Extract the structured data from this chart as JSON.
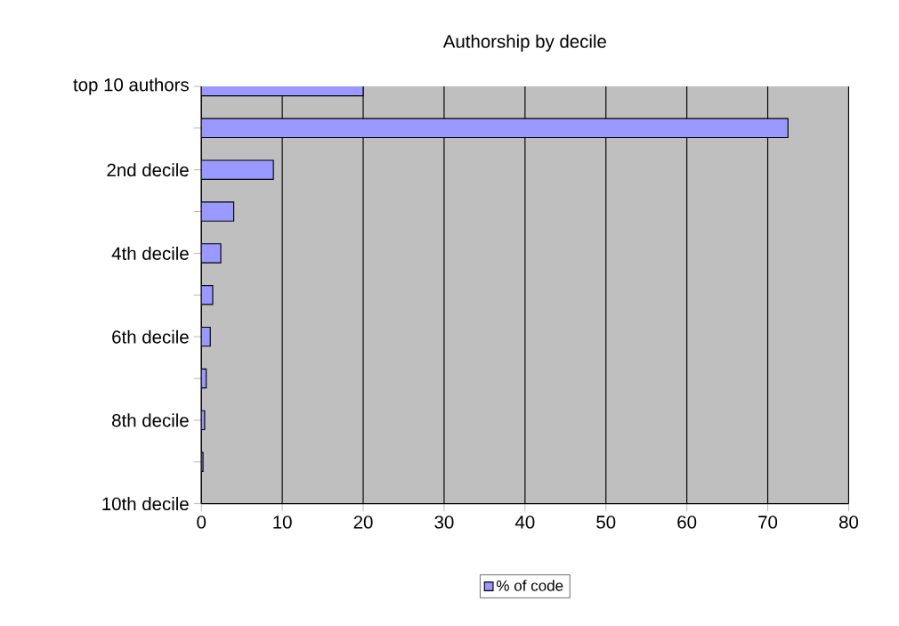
{
  "chart_data": {
    "type": "bar",
    "orientation": "horizontal",
    "title": "Authorship by decile",
    "categories": [
      "top 10 authors",
      null,
      "2nd decile",
      null,
      "4th decile",
      null,
      "6th decile",
      null,
      "8th decile",
      null,
      "10th decile"
    ],
    "series": [
      {
        "name": "% of code",
        "color": "#9999ff",
        "values": [
          20,
          72.5,
          8.9,
          4.0,
          2.4,
          1.4,
          1.1,
          0.6,
          0.4,
          0.2,
          null
        ]
      }
    ],
    "xlim": [
      0,
      80
    ],
    "xticks": [
      0,
      10,
      20,
      30,
      40,
      50,
      60,
      70,
      80
    ],
    "grid": "x",
    "legend": "bottom"
  }
}
